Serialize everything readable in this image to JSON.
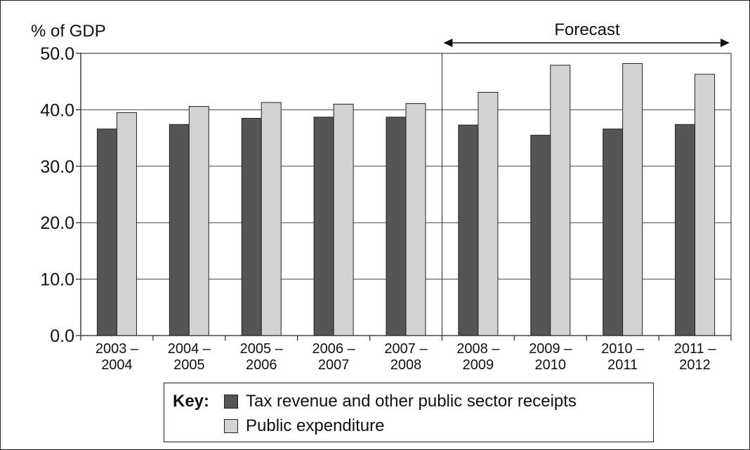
{
  "chart_data": {
    "type": "bar",
    "ylabel": "% of GDP",
    "ylim": [
      0,
      50
    ],
    "yticks": [
      "0.0",
      "10.0",
      "20.0",
      "30.0",
      "40.0",
      "50.0"
    ],
    "grid": true,
    "categories": [
      [
        "2003 –",
        "2004"
      ],
      [
        "2004 –",
        "2005"
      ],
      [
        "2005 –",
        "2006"
      ],
      [
        "2006 –",
        "2007"
      ],
      [
        "2007 –",
        "2008"
      ],
      [
        "2008 –",
        "2009"
      ],
      [
        "2009 –",
        "2010"
      ],
      [
        "2010 –",
        "2011"
      ],
      [
        "2011 –",
        "2012"
      ]
    ],
    "series": [
      {
        "name": "Tax revenue and other public sector receipts",
        "color": "#555555",
        "values": [
          36.6,
          37.4,
          38.5,
          38.7,
          38.7,
          37.3,
          35.5,
          36.6,
          37.4
        ]
      },
      {
        "name": "Public expenditure",
        "color": "#d3d3d3",
        "values": [
          39.5,
          40.6,
          41.3,
          41.0,
          41.1,
          43.1,
          47.9,
          48.2,
          46.3
        ]
      }
    ],
    "forecast": {
      "label": "Forecast",
      "start_index": 5
    },
    "legend": {
      "key_label": "Key:",
      "placement": "bottom"
    }
  }
}
